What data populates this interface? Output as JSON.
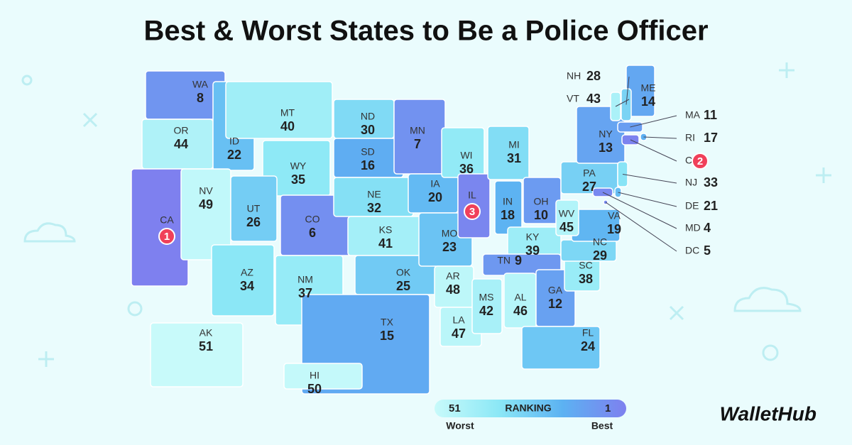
{
  "title": "Best & Worst States to Be a Police Officer",
  "states": [
    {
      "abbr": "WA",
      "rank": 8
    },
    {
      "abbr": "OR",
      "rank": 44
    },
    {
      "abbr": "CA",
      "rank": 1
    },
    {
      "abbr": "ID",
      "rank": 22
    },
    {
      "abbr": "NV",
      "rank": 49
    },
    {
      "abbr": "MT",
      "rank": 40
    },
    {
      "abbr": "WY",
      "rank": 35
    },
    {
      "abbr": "UT",
      "rank": 26
    },
    {
      "abbr": "AZ",
      "rank": 34
    },
    {
      "abbr": "CO",
      "rank": 6
    },
    {
      "abbr": "NM",
      "rank": 37
    },
    {
      "abbr": "ND",
      "rank": 30
    },
    {
      "abbr": "SD",
      "rank": 16
    },
    {
      "abbr": "NE",
      "rank": 32
    },
    {
      "abbr": "KS",
      "rank": 41
    },
    {
      "abbr": "OK",
      "rank": 25
    },
    {
      "abbr": "TX",
      "rank": 15
    },
    {
      "abbr": "MN",
      "rank": 7
    },
    {
      "abbr": "IA",
      "rank": 20
    },
    {
      "abbr": "MO",
      "rank": 23
    },
    {
      "abbr": "AR",
      "rank": 48
    },
    {
      "abbr": "LA",
      "rank": 47
    },
    {
      "abbr": "WI",
      "rank": 36
    },
    {
      "abbr": "IL",
      "rank": 3
    },
    {
      "abbr": "MI",
      "rank": 31
    },
    {
      "abbr": "IN",
      "rank": 18
    },
    {
      "abbr": "OH",
      "rank": 10
    },
    {
      "abbr": "KY",
      "rank": 39
    },
    {
      "abbr": "TN",
      "rank": 9
    },
    {
      "abbr": "MS",
      "rank": 42
    },
    {
      "abbr": "AL",
      "rank": 46
    },
    {
      "abbr": "GA",
      "rank": 12
    },
    {
      "abbr": "FL",
      "rank": 24
    },
    {
      "abbr": "SC",
      "rank": 38
    },
    {
      "abbr": "NC",
      "rank": 29
    },
    {
      "abbr": "VA",
      "rank": 19
    },
    {
      "abbr": "WV",
      "rank": 45
    },
    {
      "abbr": "PA",
      "rank": 27
    },
    {
      "abbr": "NY",
      "rank": 13
    },
    {
      "abbr": "ME",
      "rank": 14
    },
    {
      "abbr": "NH",
      "rank": 28
    },
    {
      "abbr": "VT",
      "rank": 43
    },
    {
      "abbr": "MA",
      "rank": 11
    },
    {
      "abbr": "RI",
      "rank": 17
    },
    {
      "abbr": "CT",
      "rank": 2
    },
    {
      "abbr": "NJ",
      "rank": 33
    },
    {
      "abbr": "DE",
      "rank": 21
    },
    {
      "abbr": "MD",
      "rank": 4
    },
    {
      "abbr": "DC",
      "rank": 5
    },
    {
      "abbr": "AK",
      "rank": 51
    },
    {
      "abbr": "HI",
      "rank": 50
    }
  ],
  "legend": {
    "title": "RANKING",
    "range": [
      51,
      1
    ],
    "low_label": "Worst",
    "high_label": "Best",
    "colors": [
      "#c8fafa",
      "#8ce8f6",
      "#5cb2f2",
      "#7e80ef"
    ]
  },
  "highlight_color": "#f0405a",
  "logo": "WalletHub"
}
